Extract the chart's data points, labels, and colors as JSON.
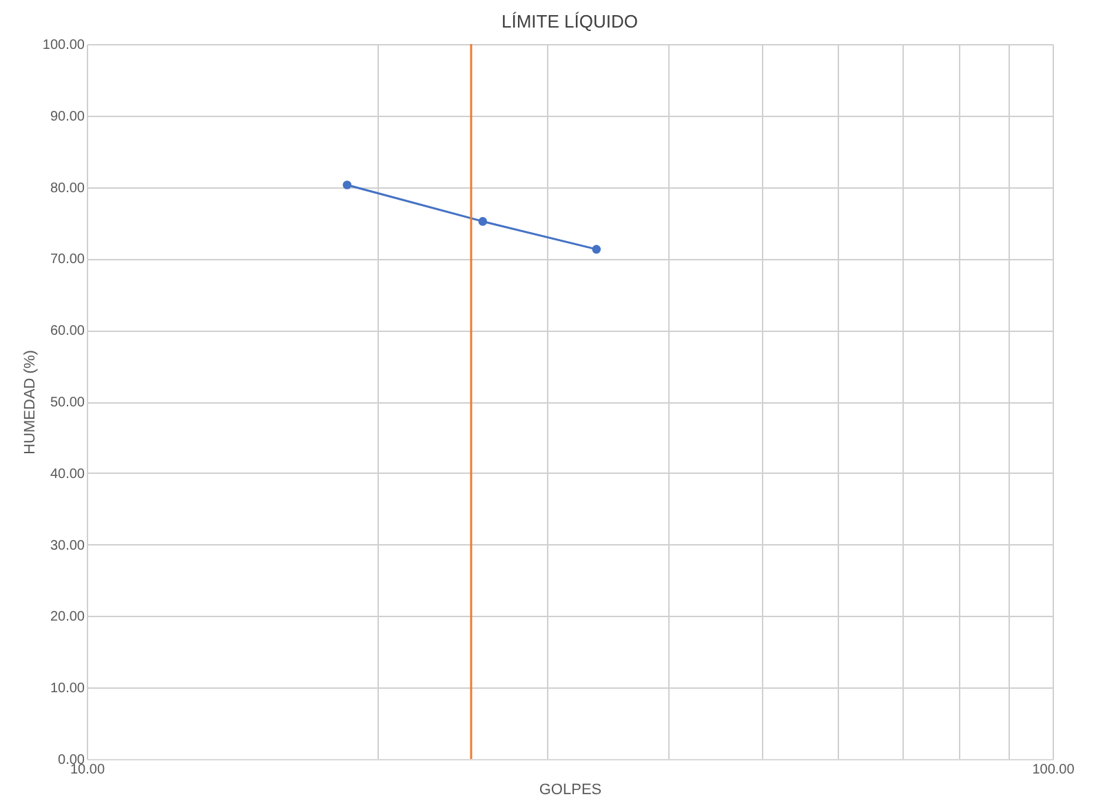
{
  "chart_data": {
    "type": "line",
    "title": "LÍMITE LÍQUIDO",
    "xlabel": "GOLPES",
    "ylabel": "HUMEDAD (%)",
    "log": "x",
    "xlim": [
      10,
      100
    ],
    "xticks": [
      {
        "value": 10,
        "label": "10.00"
      },
      {
        "value": 20,
        "label": null
      },
      {
        "value": 30,
        "label": null
      },
      {
        "value": 40,
        "label": null
      },
      {
        "value": 50,
        "label": null
      },
      {
        "value": 60,
        "label": null
      },
      {
        "value": 70,
        "label": null
      },
      {
        "value": 80,
        "label": null
      },
      {
        "value": 90,
        "label": null
      },
      {
        "value": 100,
        "label": "100.00"
      }
    ],
    "ylim": [
      0,
      100
    ],
    "yticks": [
      {
        "value": 0,
        "label": "0.00"
      },
      {
        "value": 10,
        "label": "10.00"
      },
      {
        "value": 20,
        "label": "20.00"
      },
      {
        "value": 30,
        "label": "30.00"
      },
      {
        "value": 40,
        "label": "40.00"
      },
      {
        "value": 50,
        "label": "50.00"
      },
      {
        "value": 60,
        "label": "60.00"
      },
      {
        "value": 70,
        "label": "70.00"
      },
      {
        "value": 80,
        "label": "80.00"
      },
      {
        "value": 90,
        "label": "90.00"
      },
      {
        "value": 100,
        "label": "100.00"
      }
    ],
    "grid": true,
    "marker": "circle",
    "line_style": "solid",
    "x": [
      18.6,
      25.7,
      33.7
    ],
    "series": [
      {
        "color": "#4472c4",
        "values": [
          80.3,
          75.2,
          71.3
        ]
      }
    ],
    "ref_lines": [
      {
        "axis": "x",
        "value": 25,
        "color": "#ed7d31",
        "line_style": "solid"
      }
    ]
  }
}
